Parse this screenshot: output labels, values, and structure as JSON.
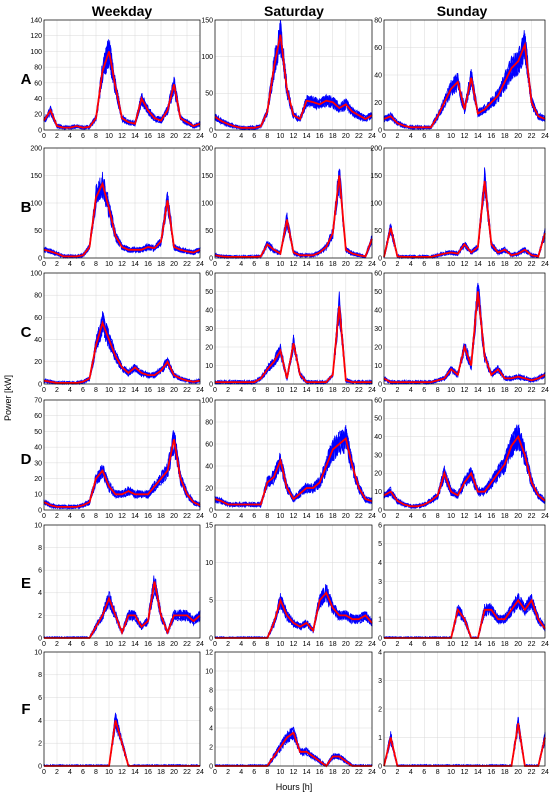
{
  "chart_data": {
    "type": "line",
    "column_titles": [
      "Weekday",
      "Saturday",
      "Sunday"
    ],
    "row_labels": [
      "A",
      "B",
      "C",
      "D",
      "E",
      "F"
    ],
    "xlabel": "Hours [h]",
    "ylabel": "Power [kW]",
    "x_ticks": [
      0,
      2,
      4,
      6,
      8,
      10,
      12,
      14,
      16,
      18,
      20,
      22,
      24
    ],
    "xlim": [
      0,
      24
    ],
    "grid": true,
    "colors": {
      "band": "#0000ff",
      "mean": "#ff0000"
    },
    "panels": [
      {
        "row": "A",
        "col": "Weekday",
        "ylim": [
          0,
          140
        ],
        "yticks": [
          0,
          20,
          40,
          60,
          80,
          100,
          120,
          140
        ],
        "hours": [
          0,
          1,
          2,
          3,
          4,
          5,
          6,
          7,
          8,
          9,
          10,
          11,
          12,
          13,
          14,
          15,
          16,
          17,
          18,
          19,
          20,
          21,
          22,
          23,
          24
        ],
        "mean": [
          12,
          25,
          5,
          3,
          3,
          5,
          3,
          4,
          15,
          75,
          100,
          55,
          15,
          10,
          8,
          40,
          25,
          15,
          12,
          25,
          58,
          15,
          10,
          5,
          8
        ]
      },
      {
        "row": "A",
        "col": "Saturday",
        "ylim": [
          0,
          150
        ],
        "yticks": [
          0,
          50,
          100,
          150
        ],
        "hours": [
          0,
          1,
          2,
          3,
          4,
          5,
          6,
          7,
          8,
          9,
          10,
          11,
          12,
          13,
          14,
          15,
          16,
          17,
          18,
          19,
          20,
          21,
          22,
          23,
          24
        ],
        "mean": [
          18,
          12,
          8,
          5,
          3,
          3,
          3,
          5,
          25,
          85,
          130,
          55,
          20,
          15,
          40,
          38,
          35,
          40,
          38,
          30,
          35,
          25,
          20,
          15,
          20
        ]
      },
      {
        "row": "A",
        "col": "Sunday",
        "ylim": [
          0,
          80
        ],
        "yticks": [
          0,
          20,
          40,
          60,
          80
        ],
        "hours": [
          0,
          1,
          2,
          3,
          4,
          5,
          6,
          7,
          8,
          9,
          10,
          11,
          12,
          13,
          14,
          15,
          16,
          17,
          18,
          19,
          20,
          21,
          22,
          23,
          24
        ],
        "mean": [
          8,
          10,
          5,
          3,
          2,
          2,
          2,
          2,
          10,
          20,
          30,
          35,
          15,
          38,
          12,
          15,
          20,
          25,
          35,
          45,
          50,
          62,
          20,
          10,
          8
        ]
      },
      {
        "row": "B",
        "col": "Weekday",
        "ylim": [
          0,
          200
        ],
        "yticks": [
          0,
          50,
          100,
          150,
          200
        ],
        "hours": [
          0,
          1,
          2,
          3,
          4,
          5,
          6,
          7,
          8,
          9,
          10,
          11,
          12,
          13,
          14,
          15,
          16,
          17,
          18,
          19,
          20,
          21,
          22,
          23,
          24
        ],
        "mean": [
          15,
          12,
          8,
          3,
          3,
          3,
          5,
          20,
          110,
          135,
          90,
          40,
          20,
          15,
          15,
          15,
          20,
          18,
          30,
          105,
          20,
          15,
          12,
          10,
          15
        ]
      },
      {
        "row": "B",
        "col": "Saturday",
        "ylim": [
          0,
          200
        ],
        "yticks": [
          0,
          50,
          100,
          150,
          200
        ],
        "hours": [
          0,
          1,
          2,
          3,
          4,
          5,
          6,
          7,
          8,
          9,
          10,
          11,
          12,
          13,
          14,
          15,
          16,
          17,
          18,
          19,
          20,
          21,
          22,
          23,
          24
        ],
        "mean": [
          5,
          3,
          2,
          2,
          2,
          2,
          2,
          3,
          25,
          15,
          8,
          70,
          10,
          5,
          5,
          5,
          10,
          20,
          45,
          150,
          15,
          8,
          5,
          3,
          35
        ]
      },
      {
        "row": "B",
        "col": "Sunday",
        "ylim": [
          0,
          200
        ],
        "yticks": [
          0,
          50,
          100,
          150,
          200
        ],
        "hours": [
          0,
          1,
          2,
          3,
          4,
          5,
          6,
          7,
          8,
          9,
          10,
          11,
          12,
          13,
          14,
          15,
          16,
          17,
          18,
          19,
          20,
          21,
          22,
          23,
          24
        ],
        "mean": [
          2,
          55,
          3,
          2,
          2,
          2,
          2,
          2,
          5,
          8,
          10,
          8,
          25,
          10,
          20,
          140,
          25,
          10,
          15,
          5,
          8,
          15,
          5,
          3,
          45
        ]
      },
      {
        "row": "C",
        "col": "Weekday",
        "ylim": [
          0,
          100
        ],
        "yticks": [
          0,
          20,
          40,
          60,
          80,
          100
        ],
        "hours": [
          0,
          1,
          2,
          3,
          4,
          5,
          6,
          7,
          8,
          9,
          10,
          11,
          12,
          13,
          14,
          15,
          16,
          17,
          18,
          19,
          20,
          21,
          22,
          23,
          24
        ],
        "mean": [
          3,
          2,
          1,
          1,
          1,
          1,
          2,
          5,
          35,
          55,
          40,
          25,
          15,
          10,
          15,
          10,
          8,
          8,
          12,
          20,
          8,
          5,
          3,
          2,
          3
        ]
      },
      {
        "row": "C",
        "col": "Saturday",
        "ylim": [
          0,
          60
        ],
        "yticks": [
          0,
          10,
          20,
          30,
          40,
          50,
          60
        ],
        "hours": [
          0,
          1,
          2,
          3,
          4,
          5,
          6,
          7,
          8,
          9,
          10,
          11,
          12,
          13,
          14,
          15,
          16,
          17,
          18,
          19,
          20,
          21,
          22,
          23,
          24
        ],
        "mean": [
          1,
          1,
          1,
          1,
          1,
          1,
          1,
          3,
          8,
          12,
          18,
          3,
          22,
          5,
          1,
          1,
          1,
          1,
          5,
          42,
          2,
          1,
          1,
          1,
          1
        ]
      },
      {
        "row": "C",
        "col": "Sunday",
        "ylim": [
          0,
          60
        ],
        "yticks": [
          0,
          10,
          20,
          30,
          40,
          50,
          60
        ],
        "hours": [
          0,
          1,
          2,
          3,
          4,
          5,
          6,
          7,
          8,
          9,
          10,
          11,
          12,
          13,
          14,
          15,
          16,
          17,
          18,
          19,
          20,
          21,
          22,
          23,
          24
        ],
        "mean": [
          3,
          1,
          1,
          1,
          1,
          1,
          1,
          1,
          2,
          3,
          8,
          5,
          20,
          10,
          50,
          15,
          5,
          8,
          3,
          3,
          4,
          3,
          2,
          3,
          5
        ]
      },
      {
        "row": "D",
        "col": "Weekday",
        "ylim": [
          0,
          70
        ],
        "yticks": [
          0,
          10,
          20,
          30,
          40,
          50,
          60,
          70
        ],
        "hours": [
          0,
          1,
          2,
          3,
          4,
          5,
          6,
          7,
          8,
          9,
          10,
          11,
          12,
          13,
          14,
          15,
          16,
          17,
          18,
          19,
          20,
          21,
          22,
          23,
          24
        ],
        "mean": [
          5,
          3,
          2,
          2,
          2,
          2,
          3,
          5,
          20,
          25,
          15,
          10,
          10,
          12,
          10,
          10,
          10,
          15,
          20,
          25,
          45,
          20,
          10,
          5,
          3
        ]
      },
      {
        "row": "D",
        "col": "Saturday",
        "ylim": [
          0,
          100
        ],
        "yticks": [
          0,
          20,
          40,
          60,
          80,
          100
        ],
        "hours": [
          0,
          1,
          2,
          3,
          4,
          5,
          6,
          7,
          8,
          9,
          10,
          11,
          12,
          13,
          14,
          15,
          16,
          17,
          18,
          19,
          20,
          21,
          22,
          23,
          24
        ],
        "mean": [
          10,
          8,
          5,
          5,
          5,
          5,
          5,
          5,
          25,
          30,
          45,
          20,
          10,
          15,
          20,
          20,
          25,
          40,
          55,
          60,
          65,
          40,
          20,
          10,
          8
        ]
      },
      {
        "row": "D",
        "col": "Sunday",
        "ylim": [
          0,
          60
        ],
        "yticks": [
          0,
          10,
          20,
          30,
          40,
          50,
          60
        ],
        "hours": [
          0,
          1,
          2,
          3,
          4,
          5,
          6,
          7,
          8,
          9,
          10,
          11,
          12,
          13,
          14,
          15,
          16,
          17,
          18,
          19,
          20,
          21,
          22,
          23,
          24
        ],
        "mean": [
          8,
          10,
          5,
          3,
          2,
          2,
          3,
          5,
          8,
          20,
          10,
          8,
          15,
          20,
          10,
          10,
          15,
          20,
          25,
          35,
          40,
          30,
          15,
          8,
          5
        ]
      },
      {
        "row": "E",
        "col": "Weekday",
        "ylim": [
          0,
          10
        ],
        "yticks": [
          0,
          2,
          4,
          6,
          8,
          10
        ],
        "hours": [
          0,
          1,
          2,
          3,
          4,
          5,
          6,
          7,
          8,
          9,
          10,
          11,
          12,
          13,
          14,
          15,
          16,
          17,
          18,
          19,
          20,
          21,
          22,
          23,
          24
        ],
        "mean": [
          0,
          0,
          0,
          0,
          0,
          0,
          0,
          0,
          1,
          2,
          3.5,
          2,
          0.5,
          2,
          2,
          1,
          1.5,
          5,
          2,
          0.5,
          2,
          2,
          2,
          1.5,
          2
        ]
      },
      {
        "row": "E",
        "col": "Saturday",
        "ylim": [
          0,
          15
        ],
        "yticks": [
          0,
          5,
          10,
          15
        ],
        "hours": [
          0,
          1,
          2,
          3,
          4,
          5,
          6,
          7,
          8,
          9,
          10,
          11,
          12,
          13,
          14,
          15,
          16,
          17,
          18,
          19,
          20,
          21,
          22,
          23,
          24
        ],
        "mean": [
          0,
          0,
          0,
          0,
          0,
          0,
          0,
          0,
          0,
          2,
          5,
          3,
          2,
          1.5,
          2,
          1,
          5,
          6,
          4,
          3,
          3,
          2.5,
          2.5,
          3,
          2
        ]
      },
      {
        "row": "E",
        "col": "Sunday",
        "ylim": [
          0,
          6
        ],
        "yticks": [
          0,
          1,
          2,
          3,
          4,
          5,
          6
        ],
        "hours": [
          0,
          1,
          2,
          3,
          4,
          5,
          6,
          7,
          8,
          9,
          10,
          11,
          12,
          13,
          14,
          15,
          16,
          17,
          18,
          19,
          20,
          21,
          22,
          23,
          24
        ],
        "mean": [
          0,
          0,
          0,
          0,
          0,
          0,
          0,
          0,
          0,
          0,
          0,
          1.5,
          1,
          0,
          0,
          1.5,
          1.5,
          1,
          1,
          1.5,
          2,
          1.5,
          2,
          1,
          0.5
        ]
      },
      {
        "row": "F",
        "col": "Weekday",
        "ylim": [
          0,
          10
        ],
        "yticks": [
          0,
          2,
          4,
          6,
          8,
          10
        ],
        "hours": [
          0,
          1,
          2,
          3,
          4,
          5,
          6,
          7,
          8,
          9,
          10,
          11,
          12,
          13,
          14,
          15,
          16,
          17,
          18,
          19,
          20,
          21,
          22,
          23,
          24
        ],
        "mean": [
          0,
          0,
          0,
          0,
          0,
          0,
          0,
          0,
          0,
          0,
          0,
          4,
          2,
          0,
          0,
          0,
          0,
          0,
          0,
          0,
          0,
          0,
          0,
          0,
          0
        ]
      },
      {
        "row": "F",
        "col": "Saturday",
        "ylim": [
          0,
          12
        ],
        "yticks": [
          0,
          2,
          4,
          6,
          8,
          10,
          12
        ],
        "hours": [
          0,
          1,
          2,
          3,
          4,
          5,
          6,
          7,
          8,
          9,
          10,
          11,
          12,
          13,
          14,
          15,
          16,
          17,
          18,
          19,
          20,
          21,
          22,
          23,
          24
        ],
        "mean": [
          0,
          0,
          0,
          0,
          0,
          0,
          0,
          0,
          0,
          1,
          2,
          3,
          3.5,
          1.5,
          1.5,
          1,
          0.5,
          0,
          1,
          1,
          0.5,
          0,
          0,
          0,
          0
        ]
      },
      {
        "row": "F",
        "col": "Sunday",
        "ylim": [
          0,
          4
        ],
        "yticks": [
          0,
          1,
          2,
          3,
          4
        ],
        "hours": [
          0,
          1,
          2,
          3,
          4,
          5,
          6,
          7,
          8,
          9,
          10,
          11,
          12,
          13,
          14,
          15,
          16,
          17,
          18,
          19,
          20,
          21,
          22,
          23,
          24
        ],
        "mean": [
          0,
          1,
          0,
          0,
          0,
          0,
          0,
          0,
          0,
          0,
          0,
          0,
          0,
          0,
          0,
          0,
          0,
          0,
          0,
          0,
          1.5,
          0,
          0,
          0,
          1
        ]
      }
    ]
  }
}
